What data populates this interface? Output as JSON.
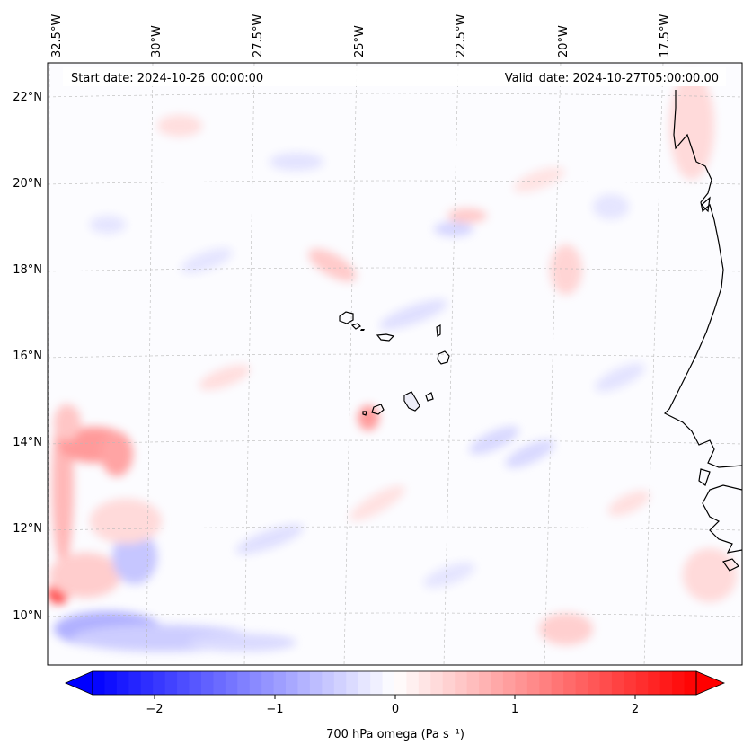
{
  "header": {
    "start_date": "Start date: 2024-10-26_00:00:00",
    "valid_date": "Valid_date: 2024-10-27T05:00:00.00"
  },
  "axes": {
    "lon_labels": [
      "32.5°W",
      "30°W",
      "27.5°W",
      "25°W",
      "22.5°W",
      "20°W",
      "17.5°W"
    ],
    "lat_labels": [
      "22°N",
      "20°N",
      "18°N",
      "16°N",
      "14°N",
      "12°N",
      "10°N"
    ]
  },
  "colorbar": {
    "label": "700 hPa omega (Pa s⁻¹)",
    "ticks": [
      "−2",
      "−1",
      "0",
      "1",
      "2"
    ],
    "vmin": -2.7,
    "vmax": 2.7,
    "low_color": "#0000ff",
    "high_color": "#ff0000"
  },
  "map": {
    "coastline_color": "#000000",
    "grid": true
  }
}
